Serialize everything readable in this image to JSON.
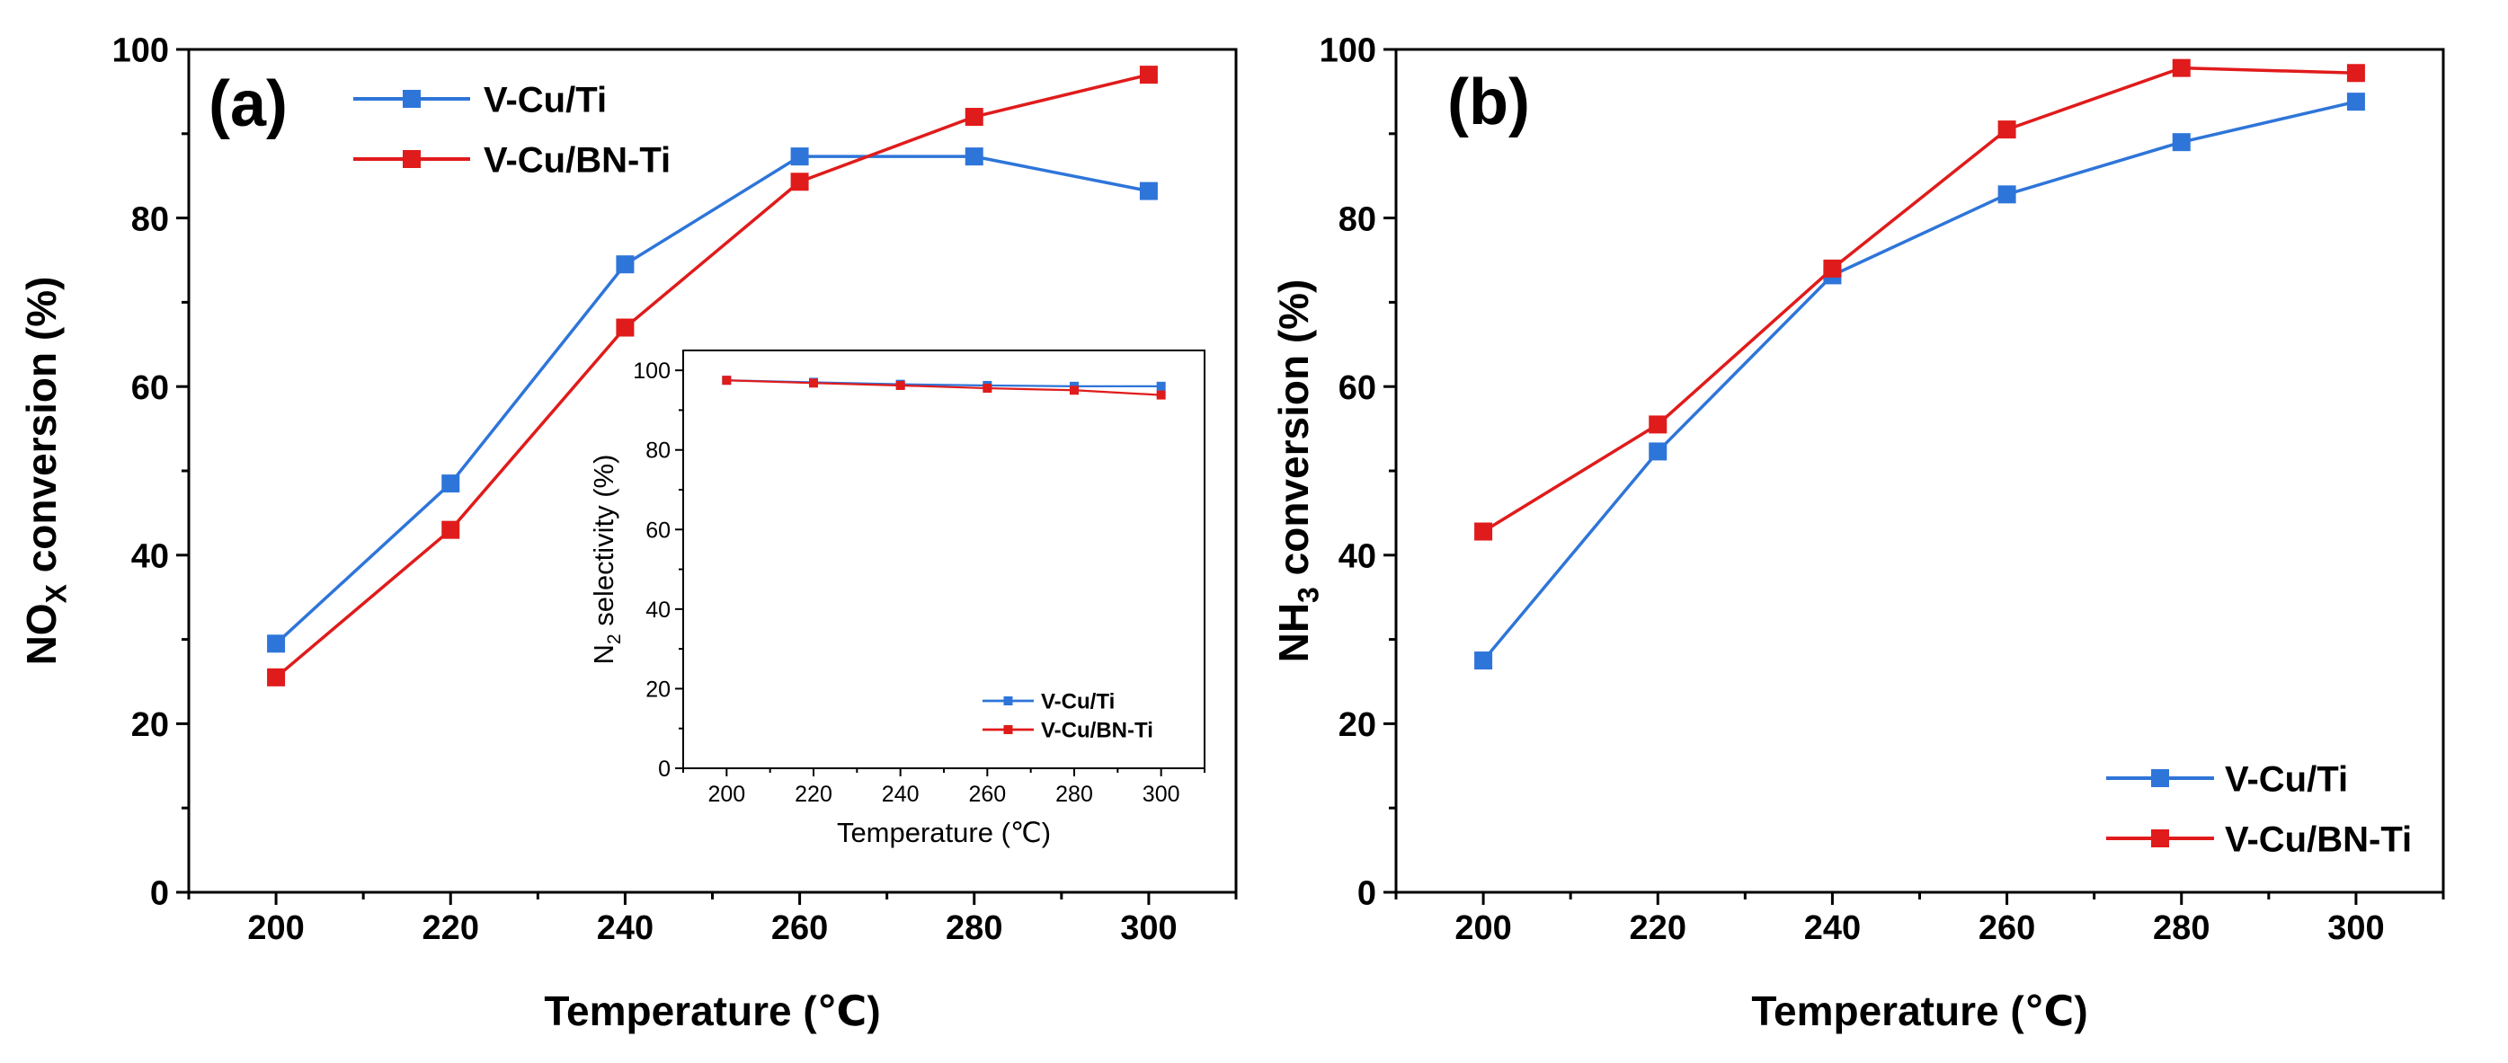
{
  "colors": {
    "series1": "#2E75D9",
    "series2": "#E01B1B",
    "axis": "#000000"
  },
  "chart_data": [
    {
      "type": "line",
      "panel_label": "(a)",
      "title": "",
      "xlabel": "Temperature (℃)",
      "ylabel_main": "NO",
      "ylabel_sub": "X",
      "ylabel_tail": " conversion (%)",
      "xlim": [
        190,
        310
      ],
      "ylim": [
        0,
        100
      ],
      "x_ticks": [
        "200",
        "220",
        "240",
        "260",
        "280",
        "300"
      ],
      "y_ticks": [
        "0",
        "20",
        "40",
        "60",
        "80",
        "100"
      ],
      "x": [
        200,
        220,
        240,
        260,
        280,
        300
      ],
      "legend_position": "top-left",
      "series": [
        {
          "name": "V-Cu/Ti",
          "color": "#2E75D9",
          "values": [
            29.5,
            48.5,
            74.5,
            87.3,
            87.3,
            83.2
          ]
        },
        {
          "name": "V-Cu/BN-Ti",
          "color": "#E01B1B",
          "values": [
            25.5,
            43.0,
            67.0,
            84.3,
            92.0,
            97.0
          ]
        }
      ]
    },
    {
      "type": "line",
      "panel_label": "",
      "title": "",
      "inset": true,
      "xlabel": "Temperature (℃)",
      "ylabel_main": "N",
      "ylabel_sub": "2",
      "ylabel_tail": " selectivity (%)",
      "xlim": [
        190,
        310
      ],
      "ylim": [
        0,
        105
      ],
      "x_ticks": [
        "200",
        "220",
        "240",
        "260",
        "280",
        "300"
      ],
      "y_ticks": [
        "0",
        "20",
        "40",
        "60",
        "80",
        "100"
      ],
      "x": [
        200,
        220,
        240,
        260,
        280,
        300
      ],
      "legend_position": "bottom-right",
      "series": [
        {
          "name": "V-Cu/Ti",
          "color": "#2E75D9",
          "values": [
            97.5,
            97.0,
            96.5,
            96.2,
            96.0,
            96.0
          ]
        },
        {
          "name": "V-Cu/BN-Ti",
          "color": "#E01B1B",
          "values": [
            97.5,
            96.8,
            96.2,
            95.5,
            95.0,
            93.8
          ]
        }
      ]
    },
    {
      "type": "line",
      "panel_label": "(b)",
      "title": "",
      "xlabel": "Temperature (℃)",
      "ylabel_main": "NH",
      "ylabel_sub": "3",
      "ylabel_tail": " conversion (%)",
      "xlim": [
        190,
        310
      ],
      "ylim": [
        0,
        100
      ],
      "x_ticks": [
        "200",
        "220",
        "240",
        "260",
        "280",
        "300"
      ],
      "y_ticks": [
        "0",
        "20",
        "40",
        "60",
        "80",
        "100"
      ],
      "x": [
        200,
        220,
        240,
        260,
        280,
        300
      ],
      "legend_position": "bottom-right",
      "series": [
        {
          "name": "V-Cu/Ti",
          "color": "#2E75D9",
          "values": [
            27.5,
            52.3,
            73.2,
            82.8,
            89.0,
            93.8
          ]
        },
        {
          "name": "V-Cu/BN-Ti",
          "color": "#E01B1B",
          "values": [
            42.8,
            55.5,
            74.0,
            90.5,
            97.8,
            97.2
          ]
        }
      ]
    }
  ]
}
